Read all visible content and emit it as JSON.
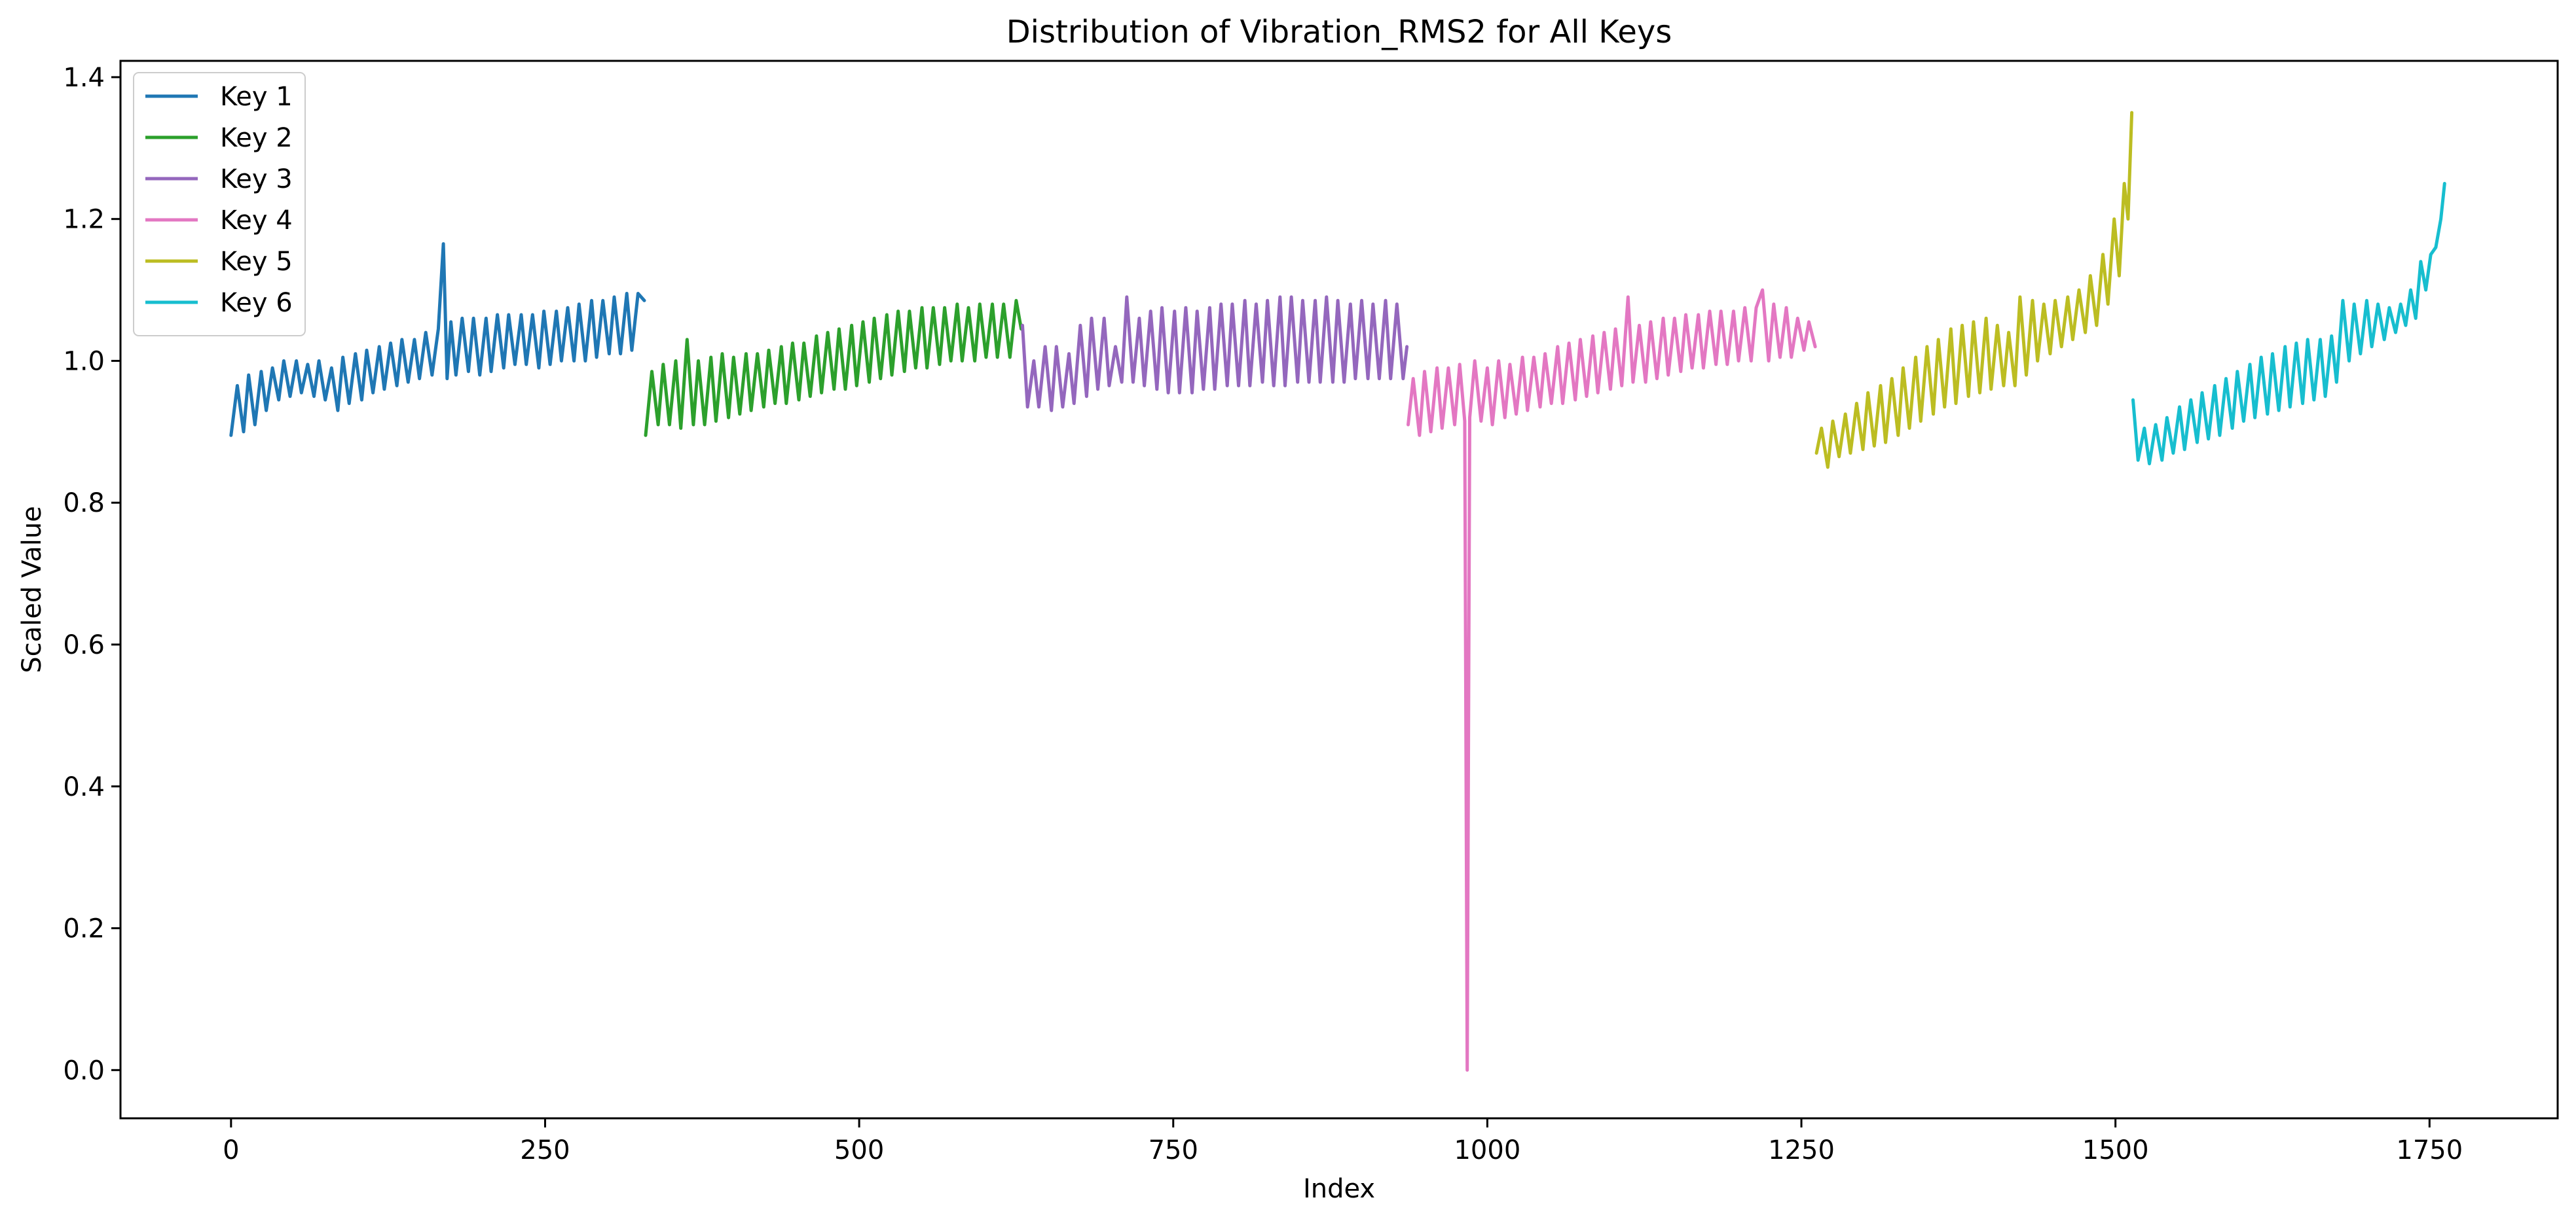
{
  "chart_data": {
    "type": "line",
    "title": "Distribution of Vibration_RMS2 for All Keys",
    "xlabel": "Index",
    "ylabel": "Scaled Value",
    "xlim": [
      -88,
      1852
    ],
    "ylim": [
      -0.068,
      1.423
    ],
    "xticks": [
      0,
      250,
      500,
      750,
      1000,
      1250,
      1500,
      1750
    ],
    "yticks": [
      0.0,
      0.2,
      0.4,
      0.6,
      0.8,
      1.0,
      1.2,
      1.4
    ],
    "xtick_labels": [
      "0",
      "250",
      "500",
      "750",
      "1000",
      "1250",
      "1500",
      "1750"
    ],
    "ytick_labels": [
      "0.0",
      "0.2",
      "0.4",
      "0.6",
      "0.8",
      "1.0",
      "1.2",
      "1.4"
    ],
    "grid": false,
    "legend_position": "upper-left",
    "series": [
      {
        "name": "Key 1",
        "color": "#1f77b4",
        "x": [
          0,
          5,
          10,
          14,
          19,
          24,
          28,
          33,
          38,
          42,
          47,
          52,
          56,
          61,
          66,
          70,
          75,
          80,
          85,
          89,
          94,
          99,
          104,
          108,
          113,
          118,
          122,
          127,
          132,
          136,
          141,
          146,
          150,
          155,
          160,
          165,
          169,
          172,
          175,
          179,
          184,
          189,
          193,
          198,
          203,
          207,
          212,
          217,
          221,
          226,
          231,
          235,
          240,
          245,
          249,
          254,
          259,
          263,
          268,
          273,
          277,
          282,
          287,
          291,
          296,
          301,
          305,
          310,
          315,
          319,
          324,
          329
        ],
        "y": [
          0.895,
          0.965,
          0.9,
          0.98,
          0.91,
          0.985,
          0.93,
          0.99,
          0.945,
          1.0,
          0.95,
          1.0,
          0.955,
          0.995,
          0.95,
          1.0,
          0.945,
          0.99,
          0.93,
          1.005,
          0.94,
          1.01,
          0.945,
          1.015,
          0.955,
          1.02,
          0.96,
          1.025,
          0.965,
          1.03,
          0.97,
          1.03,
          0.975,
          1.04,
          0.98,
          1.045,
          1.165,
          0.975,
          1.055,
          0.98,
          1.06,
          0.985,
          1.06,
          0.98,
          1.06,
          0.985,
          1.065,
          0.99,
          1.065,
          0.995,
          1.065,
          0.995,
          1.065,
          0.99,
          1.07,
          0.995,
          1.07,
          1.0,
          1.075,
          1.0,
          1.08,
          1.0,
          1.085,
          1.005,
          1.085,
          1.01,
          1.09,
          1.01,
          1.095,
          1.015,
          1.095,
          1.085
        ]
      },
      {
        "name": "Key 2",
        "color": "#2ca02c",
        "x": [
          330,
          335,
          340,
          344,
          349,
          354,
          358,
          363,
          368,
          372,
          377,
          382,
          386,
          391,
          396,
          400,
          405,
          410,
          414,
          419,
          424,
          428,
          433,
          438,
          442,
          447,
          452,
          456,
          461,
          466,
          470,
          475,
          480,
          484,
          489,
          494,
          498,
          503,
          508,
          512,
          517,
          522,
          526,
          531,
          536,
          540,
          545,
          550,
          554,
          559,
          564,
          568,
          573,
          578,
          582,
          587,
          592,
          596,
          601,
          606,
          610,
          615,
          620,
          625,
          629
        ],
        "y": [
          0.895,
          0.985,
          0.91,
          0.995,
          0.91,
          1.0,
          0.905,
          1.03,
          0.91,
          1.0,
          0.91,
          1.005,
          0.915,
          1.01,
          0.92,
          1.005,
          0.925,
          1.01,
          0.93,
          1.01,
          0.935,
          1.015,
          0.94,
          1.02,
          0.94,
          1.025,
          0.945,
          1.025,
          0.95,
          1.035,
          0.955,
          1.04,
          0.96,
          1.045,
          0.96,
          1.05,
          0.965,
          1.055,
          0.97,
          1.06,
          0.975,
          1.065,
          0.98,
          1.07,
          0.985,
          1.07,
          0.99,
          1.075,
          0.99,
          1.075,
          0.995,
          1.075,
          1.0,
          1.08,
          1.0,
          1.075,
          1.0,
          1.08,
          1.005,
          1.08,
          1.005,
          1.08,
          1.005,
          1.085,
          1.045
        ]
      },
      {
        "name": "Key 3",
        "color": "#9467bd",
        "x": [
          630,
          634,
          639,
          643,
          648,
          653,
          657,
          662,
          667,
          671,
          676,
          681,
          685,
          690,
          695,
          699,
          704,
          709,
          713,
          718,
          723,
          727,
          732,
          737,
          741,
          746,
          751,
          755,
          760,
          765,
          769,
          774,
          779,
          783,
          788,
          793,
          797,
          802,
          807,
          811,
          816,
          821,
          825,
          830,
          835,
          839,
          844,
          849,
          853,
          858,
          863,
          867,
          872,
          877,
          881,
          886,
          891,
          895,
          900,
          905,
          909,
          914,
          919,
          923,
          928,
          933,
          936
        ],
        "y": [
          1.05,
          0.935,
          1.0,
          0.935,
          1.02,
          0.93,
          1.02,
          0.935,
          1.01,
          0.94,
          1.05,
          0.95,
          1.06,
          0.96,
          1.06,
          0.965,
          1.02,
          0.97,
          1.09,
          0.97,
          1.06,
          0.965,
          1.07,
          0.96,
          1.075,
          0.955,
          1.07,
          0.955,
          1.075,
          0.955,
          1.07,
          0.96,
          1.075,
          0.96,
          1.08,
          0.965,
          1.08,
          0.965,
          1.085,
          0.965,
          1.08,
          0.97,
          1.085,
          0.965,
          1.09,
          0.965,
          1.09,
          0.97,
          1.085,
          0.97,
          1.085,
          0.97,
          1.09,
          0.97,
          1.085,
          0.97,
          1.08,
          0.975,
          1.085,
          0.975,
          1.08,
          0.975,
          1.085,
          0.975,
          1.08,
          0.975,
          1.02
        ]
      },
      {
        "name": "Key 4",
        "color": "#e377c2",
        "x": [
          937,
          941,
          946,
          950,
          955,
          960,
          964,
          969,
          974,
          978,
          982,
          984,
          986,
          990,
          995,
          1000,
          1004,
          1009,
          1014,
          1018,
          1023,
          1028,
          1032,
          1037,
          1042,
          1046,
          1051,
          1056,
          1060,
          1065,
          1070,
          1074,
          1079,
          1084,
          1088,
          1093,
          1098,
          1102,
          1107,
          1112,
          1116,
          1121,
          1126,
          1130,
          1135,
          1140,
          1144,
          1149,
          1154,
          1158,
          1163,
          1168,
          1172,
          1177,
          1182,
          1186,
          1191,
          1196,
          1200,
          1205,
          1210,
          1214,
          1219,
          1224,
          1228,
          1233,
          1238,
          1242,
          1247,
          1252,
          1256,
          1261
        ],
        "y": [
          0.91,
          0.975,
          0.895,
          0.985,
          0.9,
          0.99,
          0.905,
          0.99,
          0.91,
          0.995,
          0.915,
          0.0,
          0.92,
          1.0,
          0.915,
          0.99,
          0.91,
          1.0,
          0.92,
          0.995,
          0.925,
          1.005,
          0.93,
          1.005,
          0.935,
          1.01,
          0.94,
          1.02,
          0.94,
          1.025,
          0.945,
          1.03,
          0.95,
          1.035,
          0.955,
          1.04,
          0.96,
          1.045,
          0.965,
          1.09,
          0.97,
          1.05,
          0.97,
          1.055,
          0.975,
          1.06,
          0.98,
          1.06,
          0.985,
          1.065,
          0.99,
          1.065,
          0.99,
          1.07,
          0.995,
          1.07,
          0.995,
          1.07,
          1.0,
          1.075,
          1.0,
          1.075,
          1.1,
          1.0,
          1.08,
          1.005,
          1.075,
          1.005,
          1.06,
          1.015,
          1.055,
          1.02
        ]
      },
      {
        "name": "Key 5",
        "color": "#bcbd22",
        "x": [
          1262,
          1266,
          1271,
          1275,
          1280,
          1285,
          1289,
          1294,
          1299,
          1303,
          1308,
          1313,
          1317,
          1322,
          1327,
          1331,
          1336,
          1341,
          1345,
          1350,
          1355,
          1359,
          1364,
          1369,
          1373,
          1378,
          1383,
          1387,
          1392,
          1397,
          1401,
          1406,
          1411,
          1415,
          1420,
          1424,
          1429,
          1434,
          1438,
          1443,
          1448,
          1452,
          1457,
          1462,
          1466,
          1471,
          1476,
          1480,
          1485,
          1490,
          1494,
          1499,
          1503,
          1507,
          1510,
          1513
        ],
        "y": [
          0.87,
          0.905,
          0.85,
          0.915,
          0.865,
          0.925,
          0.87,
          0.94,
          0.875,
          0.955,
          0.88,
          0.965,
          0.885,
          0.975,
          0.895,
          0.99,
          0.905,
          1.005,
          0.915,
          1.02,
          0.925,
          1.03,
          0.935,
          1.045,
          0.94,
          1.05,
          0.95,
          1.055,
          0.955,
          1.06,
          0.96,
          1.05,
          0.965,
          1.04,
          0.965,
          1.09,
          0.98,
          1.085,
          1.0,
          1.08,
          1.01,
          1.085,
          1.02,
          1.09,
          1.03,
          1.1,
          1.04,
          1.12,
          1.05,
          1.15,
          1.08,
          1.2,
          1.12,
          1.25,
          1.2,
          1.35
        ]
      },
      {
        "name": "Key 6",
        "color": "#17becf",
        "x": [
          1514,
          1518,
          1523,
          1527,
          1532,
          1537,
          1541,
          1546,
          1551,
          1555,
          1560,
          1565,
          1569,
          1574,
          1579,
          1583,
          1588,
          1593,
          1597,
          1602,
          1607,
          1611,
          1616,
          1621,
          1625,
          1630,
          1635,
          1639,
          1644,
          1649,
          1653,
          1658,
          1663,
          1667,
          1672,
          1676,
          1681,
          1686,
          1690,
          1695,
          1700,
          1704,
          1709,
          1714,
          1718,
          1723,
          1727,
          1731,
          1735,
          1739,
          1743,
          1747,
          1751,
          1755,
          1759,
          1762
        ],
        "y": [
          0.945,
          0.86,
          0.905,
          0.855,
          0.91,
          0.86,
          0.92,
          0.87,
          0.935,
          0.875,
          0.945,
          0.885,
          0.955,
          0.89,
          0.965,
          0.895,
          0.975,
          0.905,
          0.985,
          0.915,
          0.995,
          0.92,
          1.005,
          0.925,
          1.01,
          0.93,
          1.02,
          0.935,
          1.025,
          0.94,
          1.03,
          0.945,
          1.03,
          0.95,
          1.035,
          0.97,
          1.085,
          1.0,
          1.08,
          1.01,
          1.085,
          1.02,
          1.08,
          1.03,
          1.075,
          1.04,
          1.08,
          1.05,
          1.1,
          1.06,
          1.14,
          1.1,
          1.15,
          1.16,
          1.2,
          1.25
        ]
      }
    ]
  }
}
